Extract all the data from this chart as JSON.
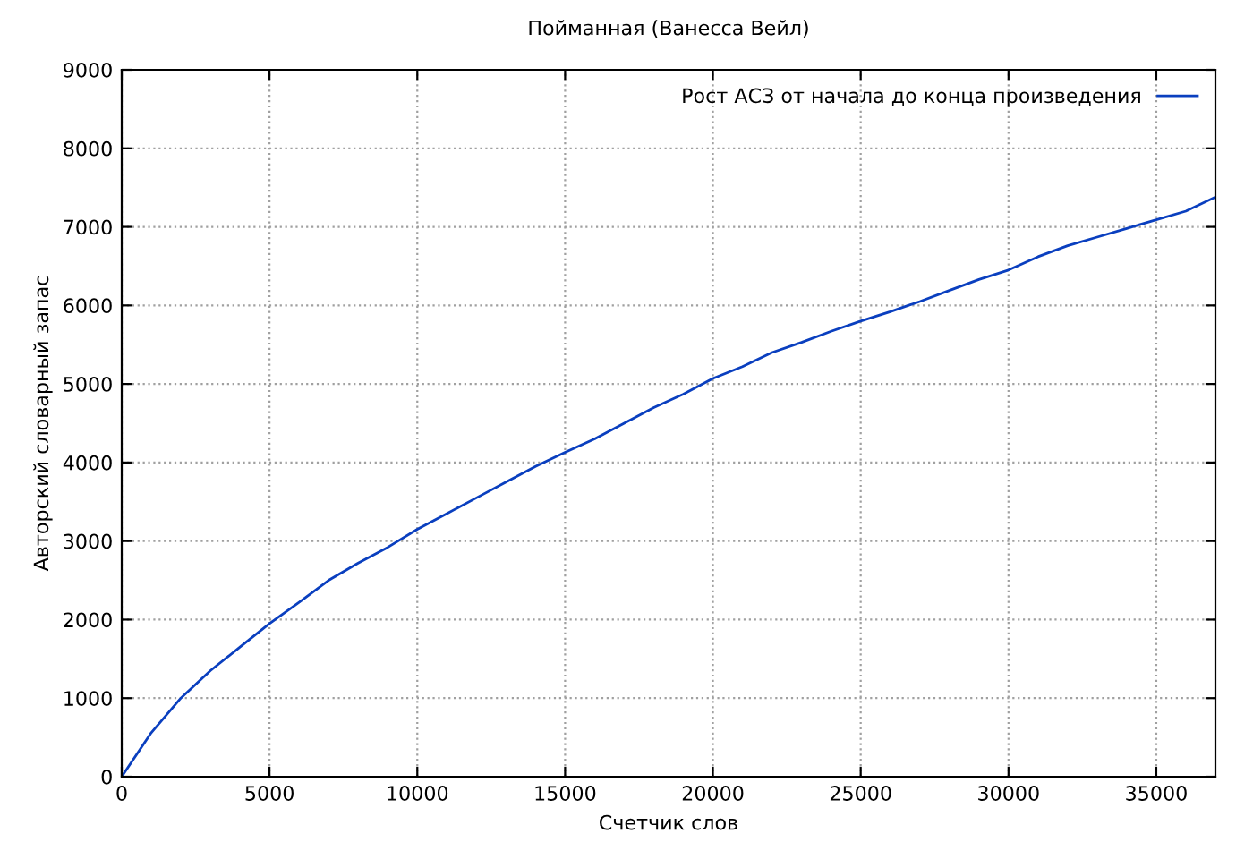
{
  "chart_data": {
    "type": "line",
    "title": "Пойманная (Ванесса Вейл)",
    "xlabel": "Счетчик слов",
    "ylabel": "Авторский словарный запас",
    "series": [
      {
        "name": "Рост АСЗ от начала до конца произведения",
        "color": "#0a3fbf",
        "x": [
          0,
          1000,
          2000,
          3000,
          4000,
          5000,
          6000,
          7000,
          8000,
          9000,
          10000,
          11000,
          12000,
          13000,
          14000,
          15000,
          16000,
          17000,
          18000,
          19000,
          20000,
          21000,
          22000,
          23000,
          24000,
          25000,
          26000,
          27000,
          28000,
          29000,
          30000,
          31000,
          32000,
          33000,
          34000,
          35000,
          36000,
          37000
        ],
        "values": [
          0,
          560,
          1000,
          1350,
          1650,
          1950,
          2220,
          2500,
          2720,
          2920,
          3150,
          3350,
          3550,
          3750,
          3950,
          4130,
          4300,
          4500,
          4700,
          4870,
          5070,
          5220,
          5400,
          5530,
          5670,
          5800,
          5920,
          6050,
          6190,
          6330,
          6450,
          6620,
          6760,
          6870,
          6980,
          7090,
          7200,
          7380
        ]
      }
    ],
    "xlim": [
      0,
      37000
    ],
    "ylim": [
      0,
      9000
    ],
    "xticks": [
      0,
      5000,
      10000,
      15000,
      20000,
      25000,
      30000,
      35000
    ],
    "yticks": [
      0,
      1000,
      2000,
      3000,
      4000,
      5000,
      6000,
      7000,
      8000,
      9000
    ],
    "grid": true,
    "legend": "top right",
    "line_style": "solid"
  }
}
